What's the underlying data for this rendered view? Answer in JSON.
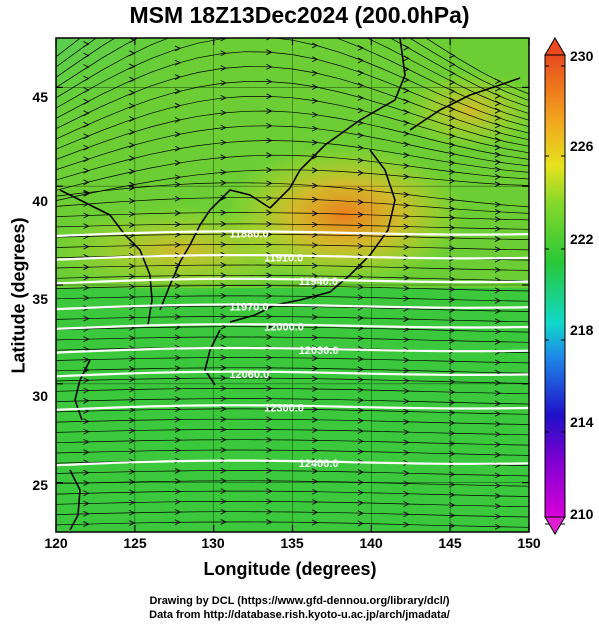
{
  "title": "MSM 18Z13Dec2024 (200.0hPa)",
  "x_axis": {
    "label": "Longitude (degrees)",
    "range": [
      120,
      150
    ],
    "ticks": [
      "120",
      "125",
      "130",
      "135",
      "140",
      "145",
      "150"
    ]
  },
  "y_axis": {
    "label": "Latitude  (degrees)",
    "range": [
      22.5,
      47.5
    ],
    "ticks": [
      "25",
      "30",
      "35",
      "40",
      "45"
    ]
  },
  "colorbar": {
    "range": [
      210,
      230
    ],
    "ticks": [
      "230",
      "226",
      "222",
      "218",
      "214",
      "210"
    ],
    "colors": [
      "#d800d8",
      "#2010c8",
      "#1e8ce8",
      "#10d8c8",
      "#28c838",
      "#86d82a",
      "#e6e21e",
      "#f2a41e",
      "#e84a1e"
    ]
  },
  "contours": [
    {
      "label": "11880.0",
      "lat": 37.6
    },
    {
      "label": "11910.0",
      "lat": 36.4
    },
    {
      "label": "11940.0",
      "lat": 35.2
    },
    {
      "label": "11970.0",
      "lat": 33.9
    },
    {
      "label": "12000.0",
      "lat": 32.9
    },
    {
      "label": "12030.0",
      "lat": 31.7
    },
    {
      "label": "12060.0",
      "lat": 30.5
    },
    {
      "label": "12300.0",
      "lat": 28.8
    },
    {
      "label": "12400.0",
      "lat": 26.0
    }
  ],
  "wind_direction": "westerly",
  "credits": [
    "Drawing by DCL (https://www.gfd-dennou.org/library/dcl/)",
    "Data from http://database.rish.kyoto-u.ac.jp/arch/jmadata/"
  ]
}
